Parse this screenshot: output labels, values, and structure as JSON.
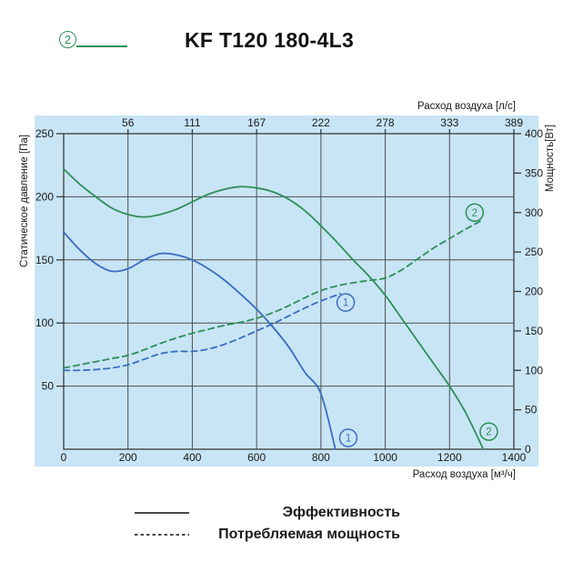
{
  "header": {
    "marker_label": "2",
    "title": "KF T120 180-4L3"
  },
  "colors": {
    "panel_bg": "#c8e5f5",
    "grid": "#4f4f4f",
    "frame": "#3a3a3a",
    "text": "#1a1a1a",
    "series_1": "#3a6cc2",
    "series_2": "#2e8f58",
    "legend_line": "#4a4a4a"
  },
  "chart_data": {
    "type": "line",
    "x_bottom": {
      "label": "Расход воздуха [м³/ч]",
      "range": [
        0,
        1400
      ],
      "ticks": [
        0,
        200,
        400,
        600,
        800,
        1000,
        1200,
        1400
      ]
    },
    "x_top": {
      "label": "Расход воздуха [л/с]",
      "ticks": [
        {
          "label": "56",
          "at": 200
        },
        {
          "label": "111",
          "at": 400
        },
        {
          "label": "167",
          "at": 600
        },
        {
          "label": "222",
          "at": 800
        },
        {
          "label": "278",
          "at": 1000
        },
        {
          "label": "333",
          "at": 1200
        },
        {
          "label": "389",
          "at": 1400
        }
      ]
    },
    "y_left": {
      "label": "Статическое давление [Па]",
      "range": [
        0,
        250
      ],
      "ticks": [
        50,
        100,
        150,
        200,
        250
      ]
    },
    "y_right": {
      "label": "Мощность[Вт]",
      "range": [
        0,
        400
      ],
      "ticks": [
        0,
        50,
        100,
        150,
        200,
        250,
        300,
        350,
        400
      ]
    },
    "grid": "on",
    "series": [
      {
        "name": "pressure-curve-1",
        "axis": "left",
        "style": "solid",
        "color_key": "series_1",
        "points": [
          [
            0,
            172
          ],
          [
            50,
            158
          ],
          [
            100,
            147
          ],
          [
            150,
            141
          ],
          [
            200,
            143
          ],
          [
            250,
            150
          ],
          [
            300,
            155
          ],
          [
            350,
            154
          ],
          [
            400,
            150
          ],
          [
            450,
            143
          ],
          [
            500,
            134
          ],
          [
            550,
            123
          ],
          [
            600,
            111
          ],
          [
            650,
            97
          ],
          [
            700,
            81
          ],
          [
            750,
            61
          ],
          [
            800,
            44
          ],
          [
            845,
            0
          ]
        ]
      },
      {
        "name": "pressure-curve-2",
        "axis": "left",
        "style": "solid",
        "color_key": "series_2",
        "points": [
          [
            0,
            222
          ],
          [
            50,
            210
          ],
          [
            100,
            200
          ],
          [
            150,
            191
          ],
          [
            200,
            186
          ],
          [
            250,
            184
          ],
          [
            300,
            186
          ],
          [
            350,
            190
          ],
          [
            400,
            196
          ],
          [
            450,
            202
          ],
          [
            500,
            206
          ],
          [
            550,
            208
          ],
          [
            600,
            207
          ],
          [
            650,
            204
          ],
          [
            700,
            198
          ],
          [
            750,
            189
          ],
          [
            800,
            177
          ],
          [
            850,
            164
          ],
          [
            900,
            150
          ],
          [
            950,
            137
          ],
          [
            1000,
            122
          ],
          [
            1050,
            104
          ],
          [
            1100,
            86
          ],
          [
            1150,
            68
          ],
          [
            1200,
            50
          ],
          [
            1250,
            29
          ],
          [
            1305,
            0
          ]
        ]
      },
      {
        "name": "power-curve-1",
        "axis": "right",
        "style": "dashed",
        "color_key": "series_1",
        "points": [
          [
            0,
            100
          ],
          [
            50,
            100
          ],
          [
            100,
            101
          ],
          [
            150,
            103
          ],
          [
            200,
            107
          ],
          [
            250,
            114
          ],
          [
            300,
            121
          ],
          [
            350,
            124
          ],
          [
            400,
            124
          ],
          [
            450,
            127
          ],
          [
            500,
            133
          ],
          [
            550,
            141
          ],
          [
            600,
            150
          ],
          [
            650,
            159
          ],
          [
            700,
            169
          ],
          [
            750,
            179
          ],
          [
            800,
            188
          ],
          [
            860,
            197
          ]
        ]
      },
      {
        "name": "power-curve-2",
        "axis": "right",
        "style": "dashed",
        "color_key": "series_2",
        "points": [
          [
            0,
            103
          ],
          [
            50,
            107
          ],
          [
            100,
            111
          ],
          [
            150,
            115
          ],
          [
            200,
            119
          ],
          [
            250,
            126
          ],
          [
            300,
            134
          ],
          [
            350,
            141
          ],
          [
            400,
            147
          ],
          [
            450,
            152
          ],
          [
            500,
            157
          ],
          [
            550,
            161
          ],
          [
            600,
            166
          ],
          [
            650,
            173
          ],
          [
            700,
            182
          ],
          [
            750,
            192
          ],
          [
            800,
            201
          ],
          [
            850,
            207
          ],
          [
            900,
            211
          ],
          [
            950,
            214
          ],
          [
            1000,
            217
          ],
          [
            1050,
            227
          ],
          [
            1100,
            241
          ],
          [
            1150,
            255
          ],
          [
            1200,
            267
          ],
          [
            1250,
            279
          ],
          [
            1300,
            290
          ]
        ]
      }
    ],
    "curve_labels": [
      {
        "label": "1",
        "color_key": "series_1",
        "axis": "right",
        "x": 877,
        "y": 186
      },
      {
        "label": "1",
        "color_key": "series_1",
        "axis": "left",
        "x": 885,
        "y": 9
      },
      {
        "label": "2",
        "color_key": "series_2",
        "axis": "right",
        "x": 1278,
        "y": 300
      },
      {
        "label": "2",
        "color_key": "series_2",
        "axis": "left",
        "x": 1322,
        "y": 14
      }
    ]
  },
  "legend": {
    "items": [
      {
        "style": "solid",
        "label": "Эффективность"
      },
      {
        "style": "dashed",
        "label": "Потребляемая мощность"
      }
    ]
  }
}
